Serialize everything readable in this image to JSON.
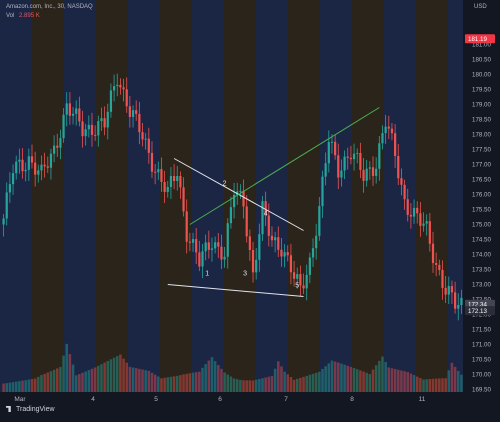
{
  "header": {
    "symbol_line": "Amazon.com, Inc., 30, NASDAQ",
    "vol_label": "Vol",
    "vol_value": "2.895 K",
    "currency": "USD"
  },
  "footer": {
    "brand": "TradingView"
  },
  "colors": {
    "background": "#131722",
    "up": "#26a69a",
    "down": "#ef5350",
    "session_blue": "#1b2645",
    "session_orange": "#2b241b",
    "trendline_white": "#e0e3eb",
    "trendline_green": "#4caf50",
    "price_badge_red": "#f23645",
    "price_badge_grey": "#434651"
  },
  "chart_data": {
    "type": "candlestick",
    "title": "Amazon.com, Inc., 30, NASDAQ",
    "xlabel": "",
    "ylabel": "USD",
    "ylim": [
      169.0,
      181.3
    ],
    "y_ticks": [
      "169.50",
      "170.00",
      "170.50",
      "171.00",
      "171.50",
      "172.00",
      "172.50",
      "173.00",
      "173.50",
      "174.00",
      "174.50",
      "175.00",
      "175.50",
      "176.00",
      "176.50",
      "177.00",
      "177.50",
      "178.00",
      "178.50",
      "179.00",
      "179.50",
      "180.00",
      "180.50",
      "181.00"
    ],
    "x_ticks": [
      "Mar",
      "4",
      "5",
      "6",
      "7",
      "8",
      "11"
    ],
    "price_labels": [
      {
        "label": "181.19",
        "value": 181.19,
        "kind": "red"
      },
      {
        "label": "172.34",
        "value": 172.34,
        "kind": "grey"
      },
      {
        "label": "172.13",
        "value": 172.13,
        "kind": "dim"
      }
    ],
    "wave_labels": [
      "1",
      "2",
      "3",
      "4",
      "5"
    ],
    "series": [
      {
        "name": "",
        "anchors": [
          [
            0,
            175.2
          ],
          [
            3,
            176.8
          ],
          [
            8,
            177.2
          ],
          [
            12,
            176.6
          ],
          [
            16,
            177.5
          ],
          [
            20,
            178.9
          ],
          [
            25,
            178.2
          ],
          [
            32,
            178.3
          ],
          [
            36,
            180.0
          ],
          [
            40,
            178.8
          ],
          [
            44,
            177.9
          ],
          [
            48,
            176.9
          ],
          [
            52,
            176.0
          ],
          [
            55,
            176.8
          ],
          [
            58,
            174.8
          ],
          [
            62,
            173.7
          ],
          [
            66,
            174.5
          ],
          [
            70,
            174.0
          ],
          [
            73,
            176.1
          ],
          [
            76,
            175.8
          ],
          [
            79,
            173.3
          ],
          [
            82,
            175.4
          ],
          [
            85,
            174.5
          ],
          [
            88,
            174.3
          ],
          [
            92,
            173.2
          ],
          [
            94,
            172.8
          ],
          [
            97,
            173.8
          ],
          [
            100,
            175.5
          ],
          [
            103,
            177.8
          ],
          [
            106,
            176.9
          ],
          [
            110,
            177.4
          ],
          [
            114,
            176.6
          ],
          [
            118,
            177.1
          ],
          [
            121,
            178.4
          ],
          [
            124,
            177.3
          ],
          [
            127,
            175.8
          ],
          [
            130,
            175.3
          ],
          [
            134,
            174.8
          ],
          [
            137,
            173.7
          ],
          [
            140,
            172.8
          ],
          [
            143,
            172.3
          ],
          [
            145,
            172.34
          ]
        ]
      }
    ],
    "volume": [
      [
        0,
        2.0
      ],
      [
        10,
        2.5
      ],
      [
        12,
        3.0
      ],
      [
        18,
        4.0
      ],
      [
        20,
        7.5
      ],
      [
        23,
        2.5
      ],
      [
        26,
        3.0
      ],
      [
        29,
        3.5
      ],
      [
        37,
        5.2
      ],
      [
        40,
        3.5
      ],
      [
        46,
        3.0
      ],
      [
        50,
        2.0
      ],
      [
        55,
        2.5
      ],
      [
        62,
        3.5
      ],
      [
        66,
        6.5
      ],
      [
        70,
        4.0
      ],
      [
        73,
        3.0
      ],
      [
        79,
        2.5
      ],
      [
        85,
        3.0
      ],
      [
        87,
        5.5
      ],
      [
        89,
        3.5
      ],
      [
        92,
        2.0
      ],
      [
        100,
        3.0
      ],
      [
        104,
        4.5
      ],
      [
        110,
        3.5
      ],
      [
        116,
        2.5
      ],
      [
        120,
        5.0
      ],
      [
        122,
        3.5
      ],
      [
        128,
        3.0
      ],
      [
        133,
        2.0
      ],
      [
        140,
        2.5
      ],
      [
        142,
        5.5
      ],
      [
        145,
        3.5
      ]
    ]
  }
}
